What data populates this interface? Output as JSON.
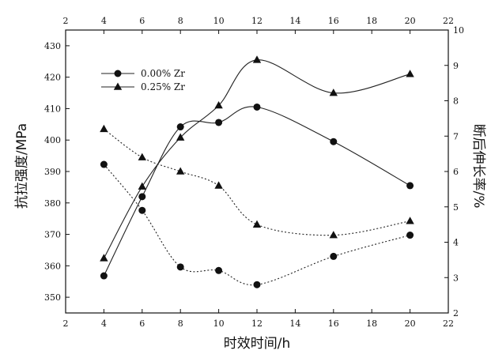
{
  "chart_data": {
    "type": "line",
    "xlabel": "时效时间/h",
    "ylabel_left": "抗拉强度/MPa",
    "ylabel_right": "断后伸长率/%",
    "xlim": [
      2,
      22
    ],
    "ylim_left": [
      345,
      435
    ],
    "ylim_right": [
      2,
      10
    ],
    "x_ticks": [
      2,
      4,
      6,
      8,
      10,
      12,
      14,
      16,
      18,
      20,
      22
    ],
    "y_left_ticks": [
      350,
      360,
      370,
      380,
      390,
      400,
      410,
      420,
      430
    ],
    "y_right_ticks": [
      2,
      3,
      4,
      5,
      6,
      7,
      8,
      9,
      10
    ],
    "legend_position": "top-left",
    "legend": [
      "0.00% Zr",
      "0.25% Zr"
    ],
    "grid": false,
    "series": [
      {
        "name": "0.00% Zr",
        "metric": "抗拉强度",
        "axis": "left",
        "marker": "circle",
        "line": "solid",
        "x": [
          4,
          6,
          8,
          10,
          12,
          16,
          20
        ],
        "y": [
          356.8,
          382.0,
          404.2,
          405.6,
          410.5,
          399.5,
          385.5
        ]
      },
      {
        "name": "0.25% Zr",
        "metric": "抗拉强度",
        "axis": "left",
        "marker": "triangle",
        "line": "solid",
        "x": [
          4,
          6,
          8,
          10,
          12,
          16,
          20
        ],
        "y": [
          362.4,
          385.2,
          400.8,
          411.0,
          425.5,
          415.0,
          421.0
        ]
      },
      {
        "name": "0.00% Zr",
        "metric": "断后伸长率",
        "axis": "right",
        "marker": "circle",
        "line": "dotted",
        "x": [
          4,
          6,
          8,
          10,
          12,
          16,
          20
        ],
        "y": [
          6.2,
          4.9,
          3.3,
          3.2,
          2.8,
          3.6,
          4.2
        ]
      },
      {
        "name": "0.25% Zr",
        "metric": "断后伸长率",
        "axis": "right",
        "marker": "triangle",
        "line": "dotted",
        "x": [
          4,
          6,
          8,
          10,
          12,
          16,
          20
        ],
        "y": [
          7.2,
          6.4,
          6.0,
          5.6,
          4.5,
          4.2,
          4.6
        ]
      }
    ]
  }
}
